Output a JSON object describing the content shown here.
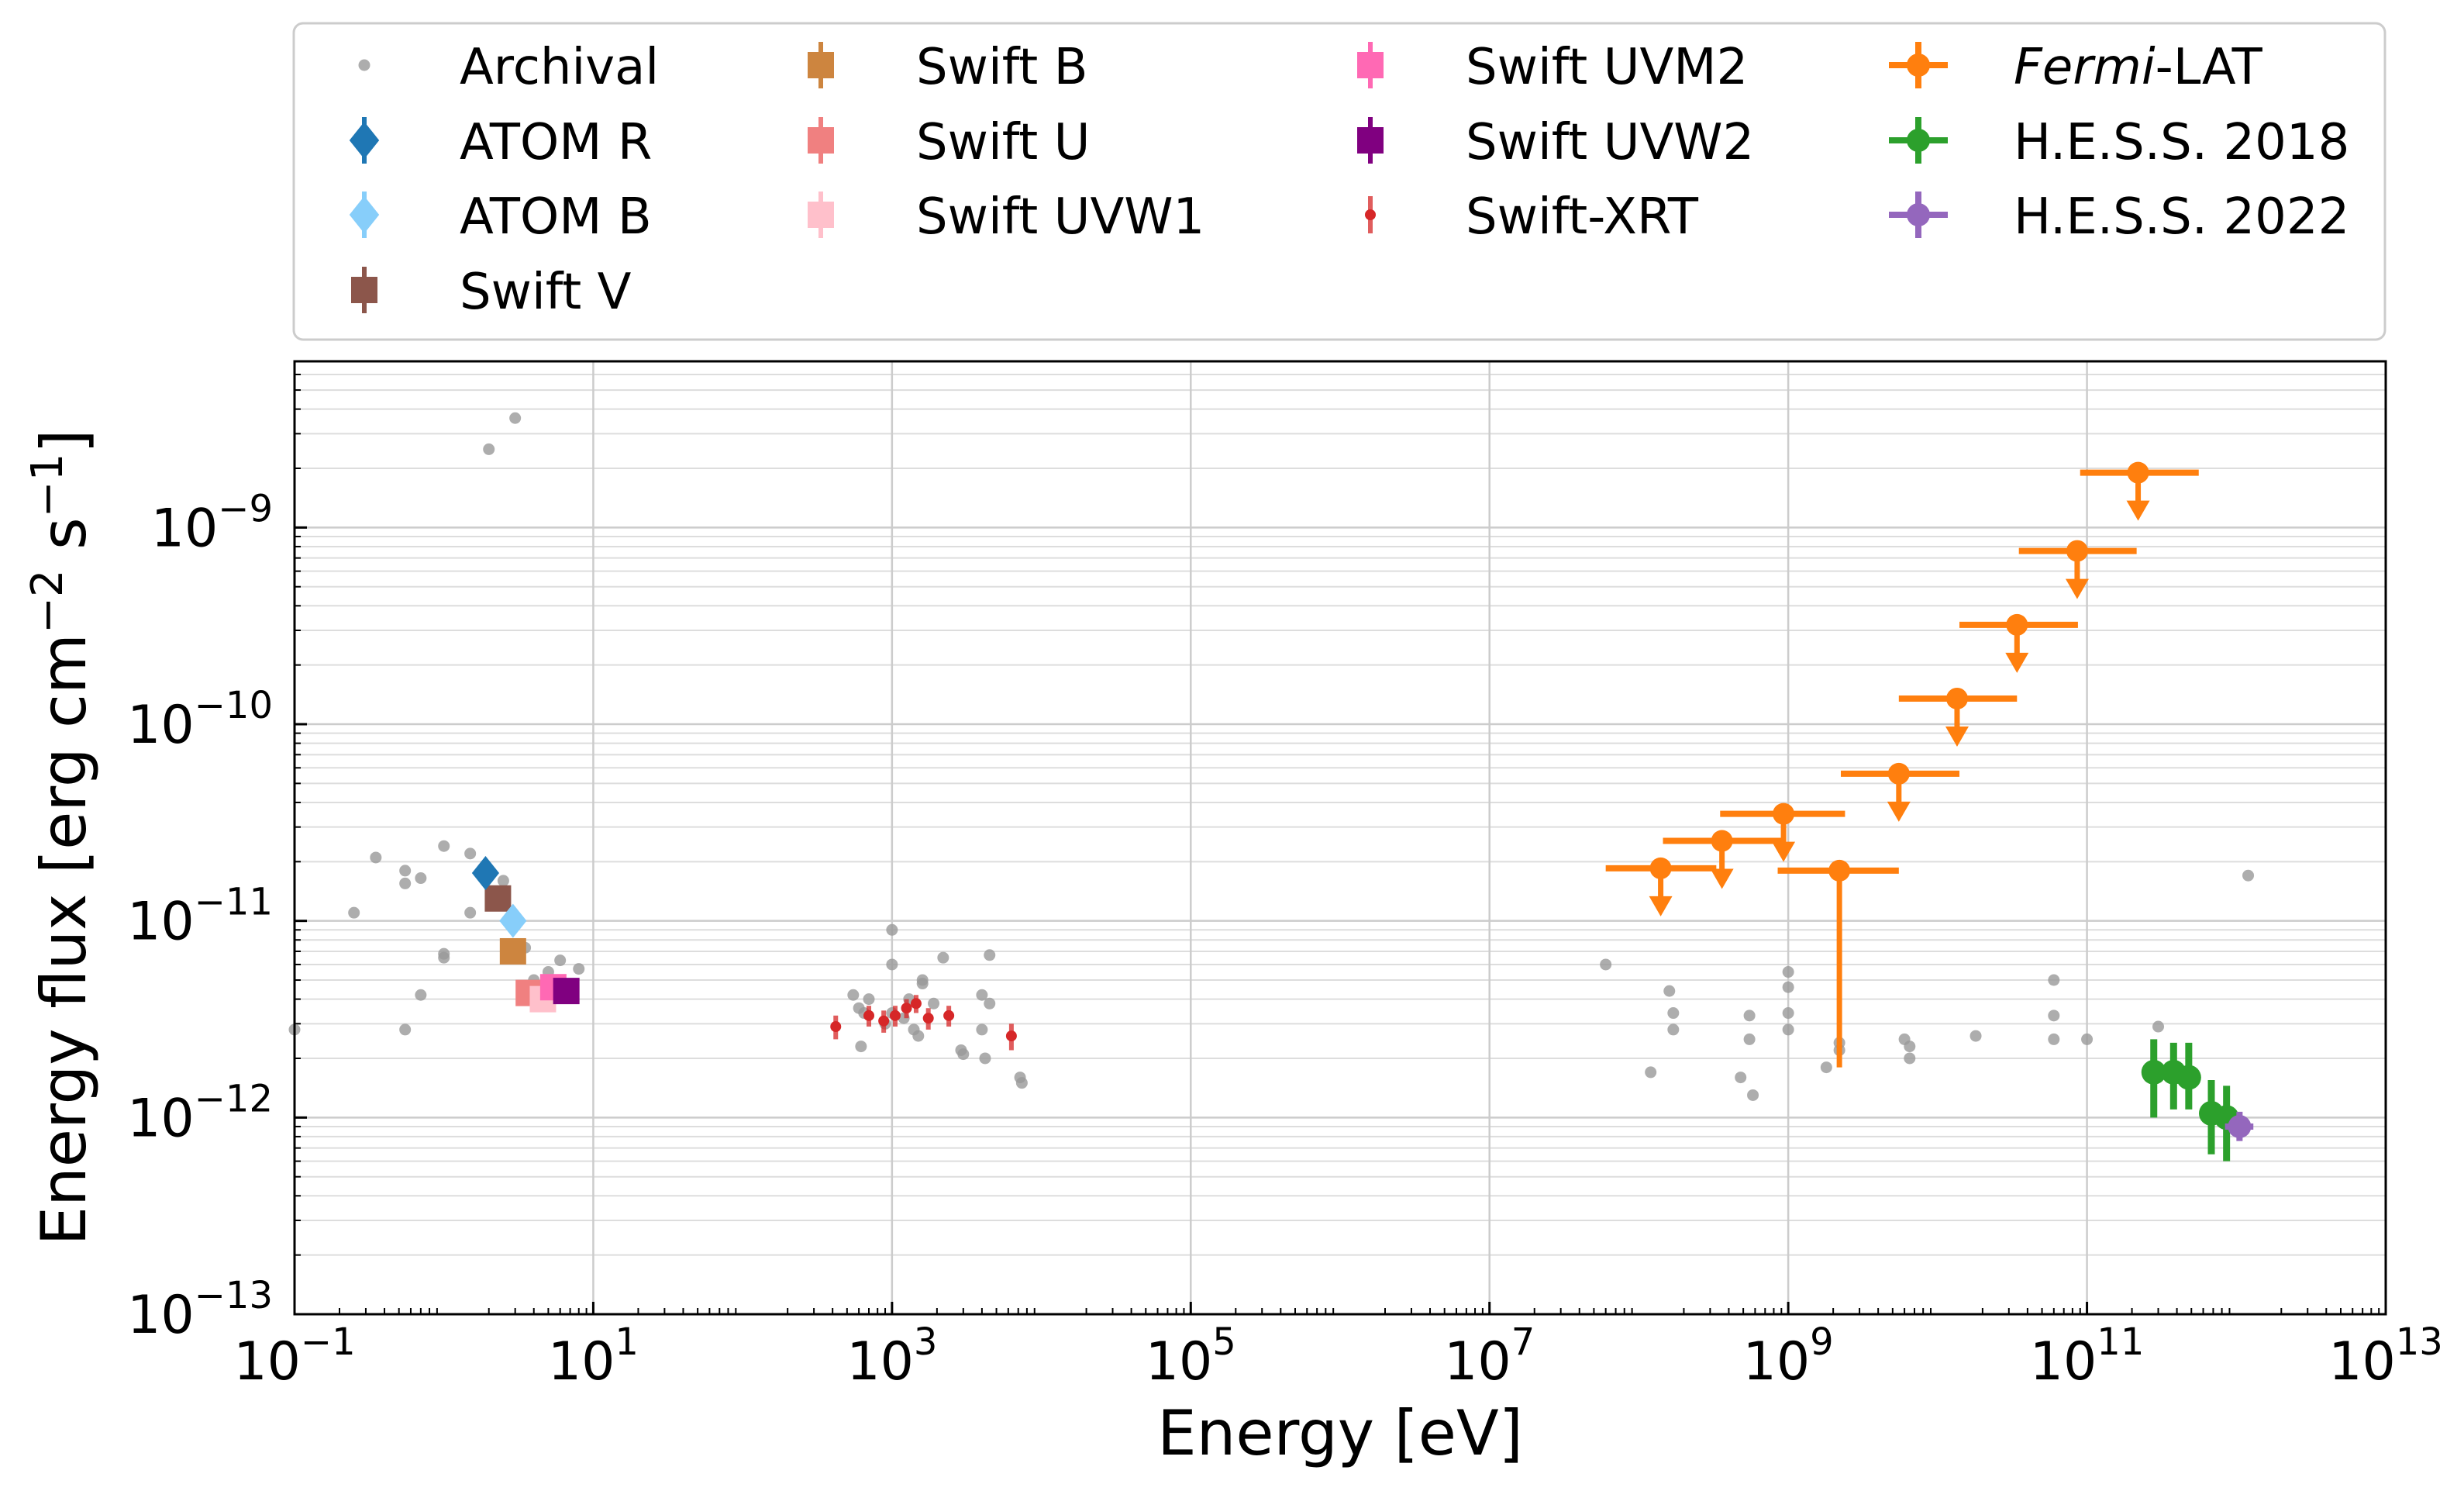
{
  "chart_data": {
    "type": "scatter",
    "xlabel": "Energy [eV]",
    "ylabel_main": "Energy flux [erg cm",
    "ylabel_sup1": "−2",
    "ylabel_mid": " s",
    "ylabel_sup2": "−1",
    "ylabel_end": "]",
    "xscale": "log",
    "yscale": "log",
    "xlim": [
      0.1,
      10000000000000.0
    ],
    "ylim": [
      1e-13,
      7e-09
    ],
    "grid": true,
    "legend_position": "top",
    "xticks": [
      {
        "value": 0.1,
        "base": "10",
        "exp": "−1"
      },
      {
        "value": 10,
        "base": "10",
        "exp": "1"
      },
      {
        "value": 1000,
        "base": "10",
        "exp": "3"
      },
      {
        "value": 100000,
        "base": "10",
        "exp": "5"
      },
      {
        "value": 10000000,
        "base": "10",
        "exp": "7"
      },
      {
        "value": 1000000000,
        "base": "10",
        "exp": "9"
      },
      {
        "value": 100000000000,
        "base": "10",
        "exp": "11"
      },
      {
        "value": 10000000000000,
        "base": "10",
        "exp": "13"
      }
    ],
    "yticks": [
      {
        "value": 1e-13,
        "base": "10",
        "exp": "−13"
      },
      {
        "value": 1e-12,
        "base": "10",
        "exp": "−12"
      },
      {
        "value": 1e-11,
        "base": "10",
        "exp": "−11"
      },
      {
        "value": 1e-10,
        "base": "10",
        "exp": "−10"
      },
      {
        "value": 1e-09,
        "base": "10",
        "exp": "−9"
      }
    ],
    "legend": [
      {
        "id": "archival",
        "label": "Archival",
        "marker": "dot",
        "color": "#999999"
      },
      {
        "id": "atom_r",
        "label": "ATOM R",
        "marker": "diamond",
        "color": "#1f77b4"
      },
      {
        "id": "atom_b",
        "label": "ATOM B",
        "marker": "diamond",
        "color": "#87cefa"
      },
      {
        "id": "swift_v",
        "label": "Swift V",
        "marker": "square",
        "color": "#8c564b"
      },
      {
        "id": "swift_b",
        "label": "Swift B",
        "marker": "square",
        "color": "#cd853f"
      },
      {
        "id": "swift_u",
        "label": "Swift U",
        "marker": "square",
        "color": "#f08080"
      },
      {
        "id": "swift_uvw1",
        "label": "Swift UVW1",
        "marker": "square",
        "color": "#ffc0cb"
      },
      {
        "id": "swift_uvm2",
        "label": "Swift UVM2",
        "marker": "square",
        "color": "#ff69b4"
      },
      {
        "id": "swift_uvw2",
        "label": "Swift UVW2",
        "marker": "square",
        "color": "#800080"
      },
      {
        "id": "swift_xrt",
        "label": "Swift-XRT",
        "marker": "smalldot",
        "color": "#d62728"
      },
      {
        "id": "fermi",
        "label_italic": "Fermi",
        "label_rest": "-LAT",
        "marker": "circle",
        "color": "#ff7f0e"
      },
      {
        "id": "hess2018",
        "label": "H.E.S.S. 2018",
        "marker": "circle",
        "color": "#2ca02c"
      },
      {
        "id": "hess2022",
        "label": "H.E.S.S. 2022",
        "marker": "circle",
        "color": "#9467bd"
      }
    ],
    "series": [
      {
        "id": "archival",
        "color": "#999999",
        "points": [
          [
            0.1,
            2.8e-12
          ],
          [
            0.25,
            1.1e-11
          ],
          [
            0.35,
            2.1e-11
          ],
          [
            0.55,
            1.8e-11
          ],
          [
            0.55,
            1.55e-11
          ],
          [
            0.55,
            2.8e-12
          ],
          [
            0.7,
            1.65e-11
          ],
          [
            0.7,
            4.2e-12
          ],
          [
            1.0,
            2.4e-11
          ],
          [
            1.0,
            6.5e-12
          ],
          [
            1.0,
            6.8e-12
          ],
          [
            1.5,
            2.2e-11
          ],
          [
            1.5,
            1.1e-11
          ],
          [
            2.0,
            2.5e-09
          ],
          [
            2.5,
            1.6e-11
          ],
          [
            3.0,
            3.6e-09
          ],
          [
            3.5,
            7.3e-12
          ],
          [
            4.0,
            5e-12
          ],
          [
            5.0,
            5.5e-12
          ],
          [
            6.0,
            6.3e-12
          ],
          [
            8.0,
            5.7e-12
          ],
          [
            550,
            4.2e-12
          ],
          [
            600,
            3.6e-12
          ],
          [
            620,
            2.3e-12
          ],
          [
            650,
            3.4e-12
          ],
          [
            700,
            4e-12
          ],
          [
            900,
            3e-12
          ],
          [
            1000,
            3.4e-12
          ],
          [
            1000,
            6e-12
          ],
          [
            1000,
            9e-12
          ],
          [
            1200,
            3.2e-12
          ],
          [
            1300,
            4e-12
          ],
          [
            1400,
            2.8e-12
          ],
          [
            1500,
            2.6e-12
          ],
          [
            1600,
            4.8e-12
          ],
          [
            1600,
            5e-12
          ],
          [
            1900,
            3.8e-12
          ],
          [
            2200,
            6.5e-12
          ],
          [
            2900,
            2.2e-12
          ],
          [
            3000,
            2.1e-12
          ],
          [
            4000,
            4.2e-12
          ],
          [
            4000,
            2.8e-12
          ],
          [
            4200,
            2e-12
          ],
          [
            4500,
            3.8e-12
          ],
          [
            4500,
            6.7e-12
          ],
          [
            7200,
            1.6e-12
          ],
          [
            7400,
            1.5e-12
          ],
          [
            60000000.0,
            6e-12
          ],
          [
            120000000.0,
            1.7e-12
          ],
          [
            160000000.0,
            4.4e-12
          ],
          [
            170000000.0,
            3.4e-12
          ],
          [
            170000000.0,
            2.8e-12
          ],
          [
            480000000.0,
            1.6e-12
          ],
          [
            550000000.0,
            3.3e-12
          ],
          [
            550000000.0,
            2.5e-12
          ],
          [
            580000000.0,
            1.3e-12
          ],
          [
            1000000000.0,
            5.5e-12
          ],
          [
            1000000000.0,
            4.6e-12
          ],
          [
            1000000000.0,
            3.4e-12
          ],
          [
            1000000000.0,
            2.8e-12
          ],
          [
            1800000000.0,
            1.8e-12
          ],
          [
            2200000000.0,
            2.4e-12
          ],
          [
            2200000000.0,
            2.2e-12
          ],
          [
            6000000000.0,
            2.5e-12
          ],
          [
            6500000000.0,
            2.3e-12
          ],
          [
            6500000000.0,
            2e-12
          ],
          [
            18000000000.0,
            2.6e-12
          ],
          [
            60000000000.0,
            5e-12
          ],
          [
            60000000000.0,
            3.3e-12
          ],
          [
            60000000000.0,
            2.5e-12
          ],
          [
            100000000000.0,
            2.5e-12
          ],
          [
            300000000000.0,
            2.9e-12
          ],
          [
            1200000000000.0,
            1.7e-11
          ]
        ]
      },
      {
        "id": "atom_r",
        "color": "#1f77b4",
        "marker": "diamond",
        "points": [
          [
            1.9,
            1.75e-11
          ]
        ]
      },
      {
        "id": "atom_b",
        "color": "#87cefa",
        "marker": "diamond",
        "points": [
          [
            2.9,
            1e-11
          ]
        ]
      },
      {
        "id": "swift_v",
        "color": "#8c564b",
        "marker": "square",
        "points": [
          [
            2.3,
            1.3e-11
          ]
        ]
      },
      {
        "id": "swift_b",
        "color": "#cd853f",
        "marker": "square",
        "points": [
          [
            2.9,
            7e-12
          ]
        ]
      },
      {
        "id": "swift_u",
        "color": "#f08080",
        "marker": "square",
        "points": [
          [
            3.7,
            4.3e-12
          ]
        ]
      },
      {
        "id": "swift_uvw1",
        "color": "#ffc0cb",
        "marker": "square",
        "points": [
          [
            4.6,
            4e-12
          ]
        ]
      },
      {
        "id": "swift_uvm2",
        "color": "#ff69b4",
        "marker": "square",
        "points": [
          [
            5.4,
            4.6e-12
          ]
        ]
      },
      {
        "id": "swift_uvw2",
        "color": "#800080",
        "marker": "square",
        "points": [
          [
            6.6,
            4.4e-12
          ]
        ]
      },
      {
        "id": "swift_xrt",
        "color": "#d62728",
        "marker": "smalldot",
        "points": [
          [
            420,
            2.9e-12,
            4e-13
          ],
          [
            700,
            3.3e-12,
            4e-13
          ],
          [
            880,
            3.1e-12,
            4e-13
          ],
          [
            1050,
            3.3e-12,
            4e-13
          ],
          [
            1250,
            3.6e-12,
            4e-13
          ],
          [
            1450,
            3.8e-12,
            4e-13
          ],
          [
            1750,
            3.2e-12,
            4e-13
          ],
          [
            2400,
            3.3e-12,
            4e-13
          ],
          [
            6300,
            2.6e-12,
            4e-13
          ]
        ]
      },
      {
        "id": "fermi",
        "color": "#ff7f0e",
        "upper_limits": [
          [
            140000000.0,
            1.85e-11,
            60000000.0,
            330000000.0
          ],
          [
            360000000.0,
            2.55e-11,
            145000000.0,
            940000000.0
          ],
          [
            930000000.0,
            3.5e-11,
            350000000.0,
            2400000000.0
          ],
          [
            5500000000.0,
            5.6e-11,
            2250000000.0,
            14000000000.0
          ],
          [
            13500000000.0,
            1.35e-10,
            5500000000.0,
            34000000000.0
          ],
          [
            34000000000.0,
            3.2e-10,
            14000000000.0,
            87000000000.0
          ],
          [
            86000000000.0,
            7.6e-10,
            35000000000.0,
            215000000000.0
          ],
          [
            220000000000.0,
            1.9e-09,
            90000000000.0,
            560000000000.0
          ]
        ],
        "points": [
          [
            2200000000.0,
            1.8e-11,
            850000000.0,
            5500000000.0,
            1.8e-12
          ]
        ]
      },
      {
        "id": "hess2018",
        "color": "#2ca02c",
        "points": [
          [
            280000000000.0,
            1.7e-12,
            1e-12,
            2.5e-12
          ],
          [
            380000000000.0,
            1.7e-12,
            1.1e-12,
            2.4e-12
          ],
          [
            480000000000.0,
            1.6e-12,
            1.1e-12,
            2.4e-12
          ],
          [
            680000000000.0,
            1.05e-12,
            6.5e-13,
            1.55e-12
          ],
          [
            860000000000.0,
            1e-12,
            6e-13,
            1.45e-12
          ]
        ]
      },
      {
        "id": "hess2022",
        "color": "#9467bd",
        "points": [
          [
            1050000000000.0,
            9e-13,
            7.6e-13,
            1.07e-12,
            840000000000.0,
            1300000000000.0
          ]
        ]
      }
    ]
  }
}
